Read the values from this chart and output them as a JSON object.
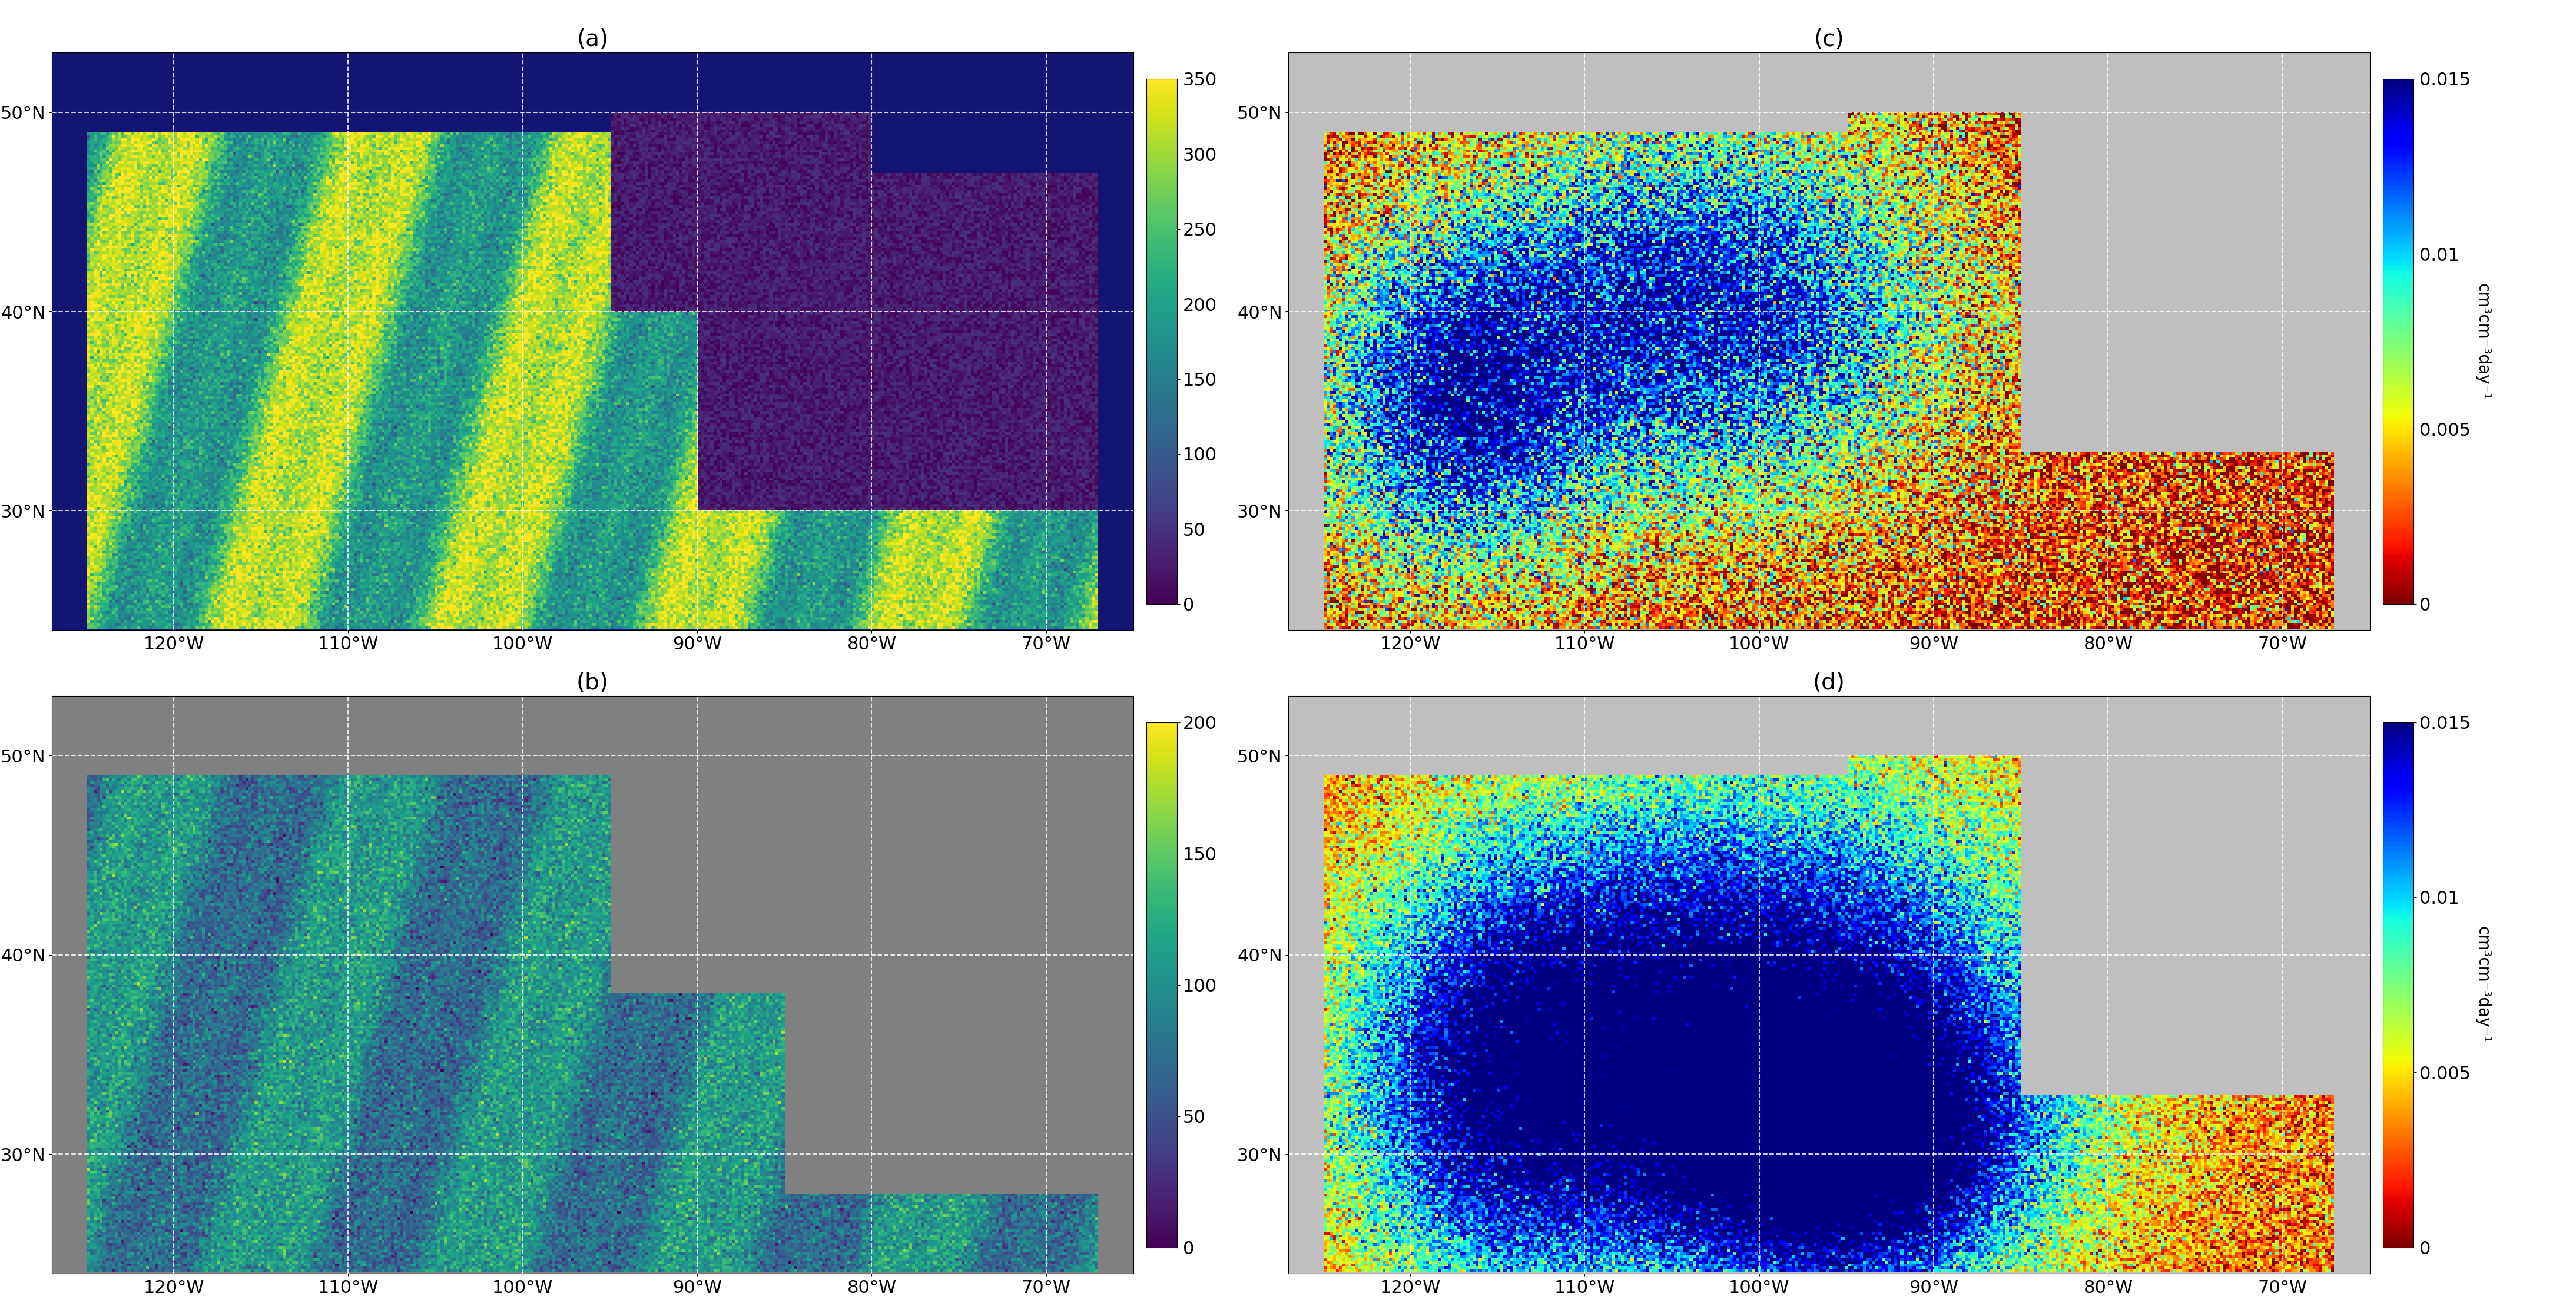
{
  "panels": [
    {
      "label": "(a)",
      "cmap": "viridis",
      "vmin": 0,
      "vmax": 350,
      "ticks": [
        0,
        50,
        100,
        150,
        200,
        250,
        300,
        350
      ],
      "colorbar_label": "",
      "background_outside": "#add8e6",
      "background_nodata": [
        0.08,
        0.08,
        0.45
      ],
      "pattern": "satellite_obs"
    },
    {
      "label": "(b)",
      "cmap": "viridis",
      "vmin": 0,
      "vmax": 200,
      "ticks": [
        0,
        50,
        100,
        150,
        200
      ],
      "colorbar_label": "",
      "background_outside": "#add8e6",
      "background_nodata": [
        0.5,
        0.5,
        0.5
      ],
      "pattern": "drying_count"
    },
    {
      "label": "(c)",
      "cmap": "jet_r",
      "vmin": 0,
      "vmax": 0.015,
      "ticks": [
        0,
        0.005,
        0.01,
        0.015
      ],
      "tick_labels": [
        "0",
        "0.005",
        "0.01",
        "0.015"
      ],
      "colorbar_label": "cm³cm⁻³day⁻¹",
      "background_outside": "#add8e6",
      "background_nodata": [
        0.75,
        0.75,
        0.75
      ],
      "pattern": "drying_rate_sat"
    },
    {
      "label": "(d)",
      "cmap": "jet_r",
      "vmin": 0,
      "vmax": 0.015,
      "ticks": [
        0,
        0.005,
        0.01,
        0.015
      ],
      "tick_labels": [
        "0",
        "0.005",
        "0.01",
        "0.015"
      ],
      "colorbar_label": "cm³cm⁻³day⁻¹",
      "background_outside": "#add8e6",
      "background_nodata": [
        0.75,
        0.75,
        0.75
      ],
      "pattern": "drying_rate_model"
    }
  ],
  "lon_range": [
    -127,
    -65
  ],
  "lat_range": [
    24,
    53
  ],
  "grid_lons": [
    -120,
    -110,
    -100,
    -90,
    -80,
    -70
  ],
  "grid_lats": [
    30,
    40,
    50
  ],
  "ocean_color": "#a8c8e8",
  "figure_bg": "#ffffff",
  "label_fontsize": 28,
  "tick_fontsize": 22,
  "colorbar_label_fontsize": 20
}
